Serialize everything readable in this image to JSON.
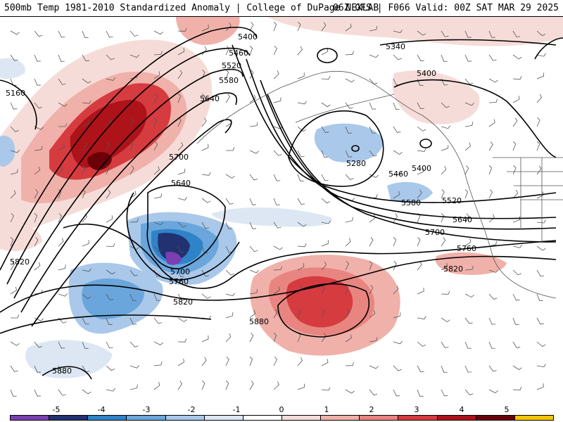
{
  "header": {
    "left_title": "500mb Temp 1981-2010 Standardized Anomaly | College of DuPage NEXLAB",
    "right_title": "06Z GFS | F066 Valid: 00Z SAT MAR 29 2025"
  },
  "map": {
    "contour_labels": [
      {
        "label": "5400"
      },
      {
        "label": "5460"
      },
      {
        "label": "5520"
      },
      {
        "label": "5580"
      },
      {
        "label": "5640"
      },
      {
        "label": "5160"
      },
      {
        "label": "5340"
      },
      {
        "label": "5400"
      },
      {
        "label": "5700"
      },
      {
        "label": "5640"
      },
      {
        "label": "5280"
      },
      {
        "label": "5460"
      },
      {
        "label": "5400"
      },
      {
        "label": "5580"
      },
      {
        "label": "5520"
      },
      {
        "label": "5640"
      },
      {
        "label": "5700"
      },
      {
        "label": "5760"
      },
      {
        "label": "5820"
      },
      {
        "label": "5820"
      },
      {
        "label": "5700"
      },
      {
        "label": "5760"
      },
      {
        "label": "5820"
      },
      {
        "label": "5880"
      },
      {
        "label": "5880"
      }
    ]
  },
  "colorbar": {
    "ticks": [
      "-5",
      "-4",
      "-3",
      "-2",
      "-1",
      "0",
      "1",
      "2",
      "3",
      "4",
      "5"
    ],
    "colors": [
      "#7b3fb2",
      "#22316f",
      "#2f83c8",
      "#6aa6dc",
      "#a9c8ea",
      "#dce7f3",
      "#ffffff",
      "#f6dcd8",
      "#f0b1aa",
      "#e98580",
      "#d63b40",
      "#ad1319",
      "#6b0008",
      "#f5c400"
    ]
  }
}
